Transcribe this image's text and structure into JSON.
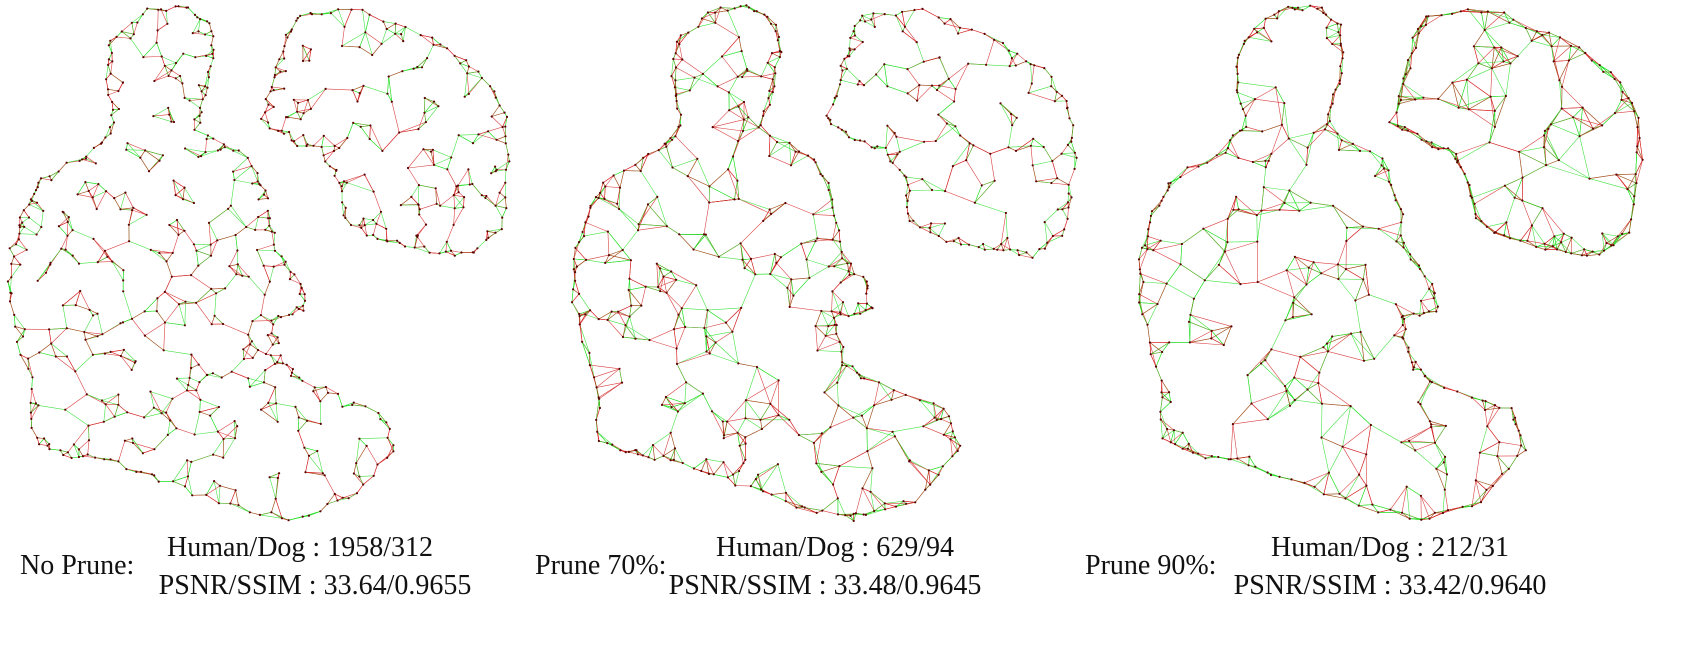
{
  "panels": [
    {
      "label": "No Prune:",
      "line1": "Human/Dog : 1958/312",
      "line2": "PSNR/SSIM : 33.64/0.9655",
      "density": 1.0
    },
    {
      "label": "Prune 70%:",
      "line1": "Human/Dog : 629/94",
      "line2": "PSNR/SSIM : 33.48/0.9645",
      "density": 0.72
    },
    {
      "label": "Prune 90%:",
      "line1": "Human/Dog : 212/31",
      "line2": "PSNR/SSIM : 33.42/0.9640",
      "density": 0.5
    }
  ],
  "colors": {
    "edge_red": "#d42020",
    "edge_green": "#22dd22",
    "node": "#5a0000",
    "text": "#111111"
  }
}
